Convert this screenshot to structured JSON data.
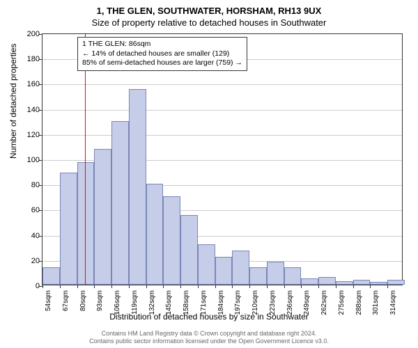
{
  "title": "1, THE GLEN, SOUTHWATER, HORSHAM, RH13 9UX",
  "subtitle": "Size of property relative to detached houses in Southwater",
  "y_axis_title": "Number of detached properties",
  "x_axis_title": "Distribution of detached houses by size in Southwater",
  "footer_line1": "Contains HM Land Registry data © Crown copyright and database right 2024.",
  "footer_line2": "Contains public sector information licensed under the Open Government Licence v3.0.",
  "chart": {
    "type": "histogram",
    "ylim": [
      0,
      200
    ],
    "ytick_step": 20,
    "x_start": 54,
    "x_end": 326,
    "xtick_step": 13,
    "xtick_suffix": "sqm",
    "bar_color": "#c5cde8",
    "bar_border": "#7a86b8",
    "grid_color": "#cccccc",
    "background": "#ffffff",
    "bars": [
      {
        "x": 54,
        "h": 14
      },
      {
        "x": 67,
        "h": 89
      },
      {
        "x": 80,
        "h": 97
      },
      {
        "x": 93,
        "h": 108
      },
      {
        "x": 106,
        "h": 130
      },
      {
        "x": 119,
        "h": 155
      },
      {
        "x": 132,
        "h": 80
      },
      {
        "x": 145,
        "h": 70
      },
      {
        "x": 158,
        "h": 55
      },
      {
        "x": 171,
        "h": 32
      },
      {
        "x": 184,
        "h": 22
      },
      {
        "x": 197,
        "h": 27
      },
      {
        "x": 210,
        "h": 14
      },
      {
        "x": 223,
        "h": 18
      },
      {
        "x": 236,
        "h": 14
      },
      {
        "x": 249,
        "h": 5
      },
      {
        "x": 262,
        "h": 6
      },
      {
        "x": 275,
        "h": 3
      },
      {
        "x": 288,
        "h": 4
      },
      {
        "x": 301,
        "h": 2
      },
      {
        "x": 314,
        "h": 4
      }
    ],
    "marker": {
      "value": 86,
      "color": "#ff0000"
    },
    "annotation": {
      "line1": "1 THE GLEN: 86sqm",
      "line2": "← 14% of detached houses are smaller (129)",
      "line3": "85% of semi-detached houses are larger (759) →"
    }
  }
}
